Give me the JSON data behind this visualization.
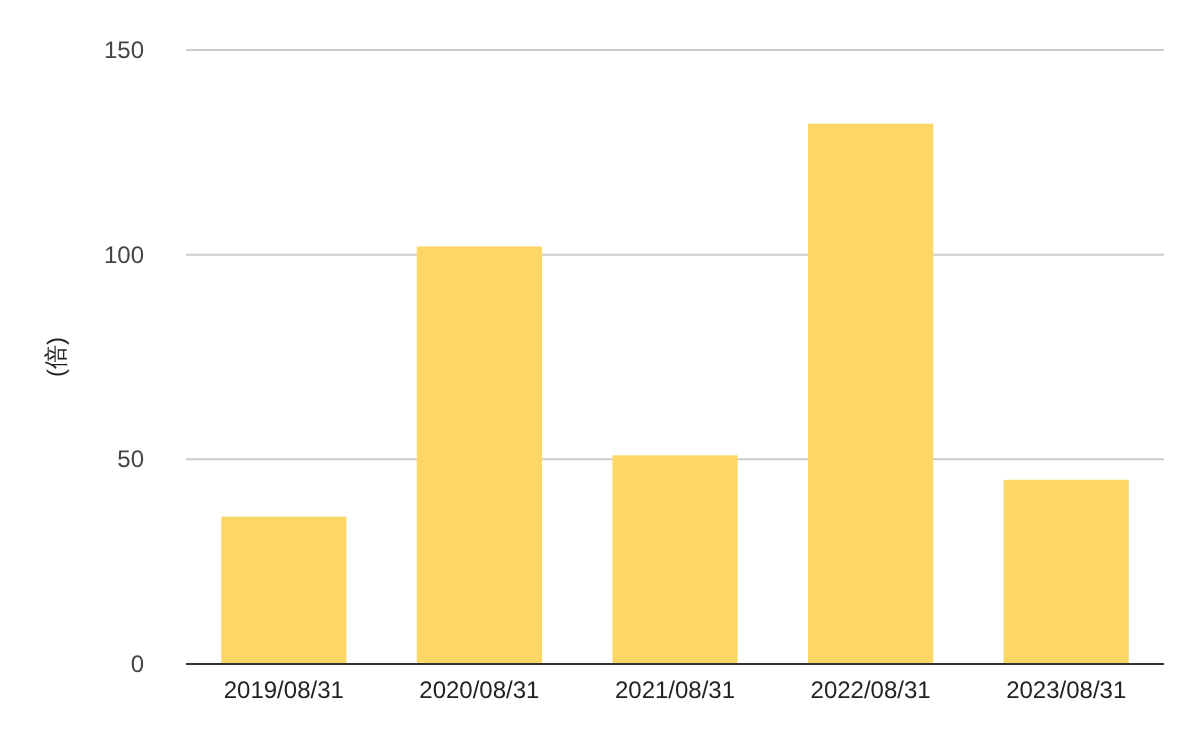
{
  "chart_data": {
    "type": "bar",
    "ylabel": "(倍)",
    "categories": [
      "2019/08/31",
      "2020/08/31",
      "2021/08/31",
      "2022/08/31",
      "2023/08/31"
    ],
    "values": [
      36,
      102,
      51,
      132,
      45
    ],
    "color": "#fdd766",
    "ylim": [
      0,
      150
    ],
    "yticks": [
      0,
      50,
      100,
      150
    ],
    "grid": "y"
  }
}
